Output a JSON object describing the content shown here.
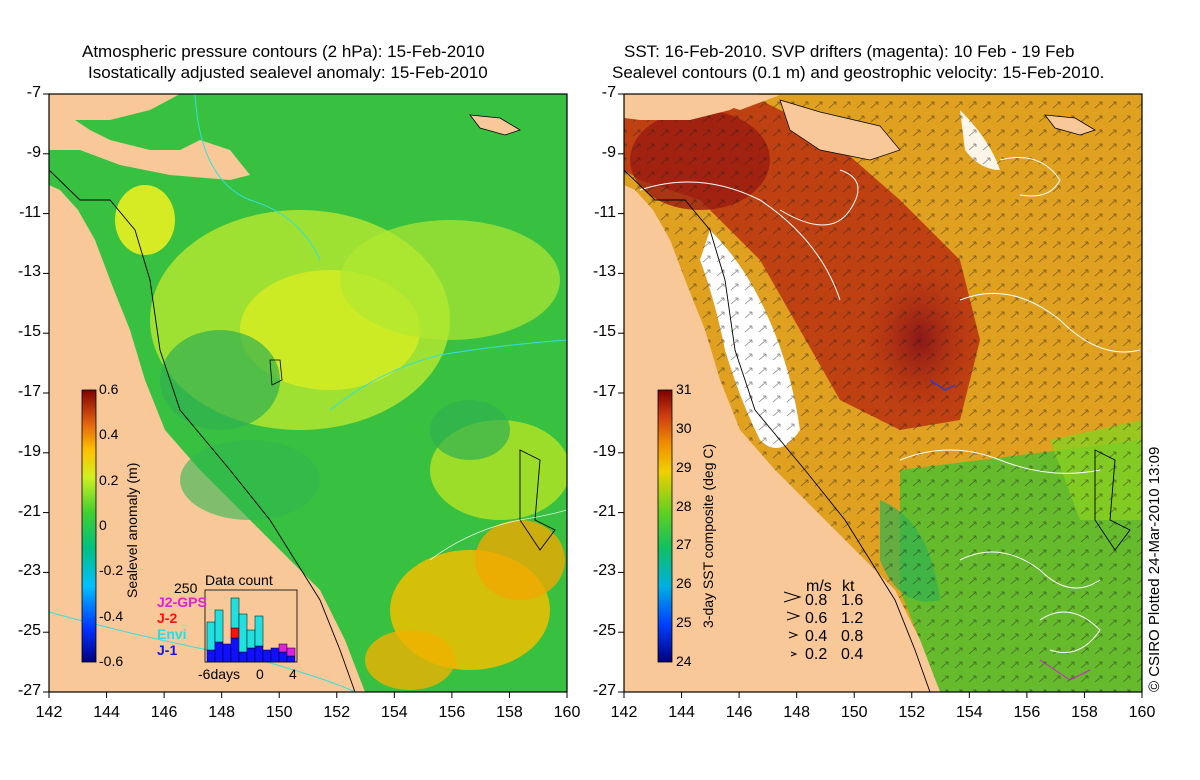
{
  "left_panel": {
    "title_line1": "Atmospheric pressure contours (2 hPa): 15-Feb-2010",
    "title_line2": "Isostatically adjusted sealevel anomaly: 15-Feb-2010",
    "colorbar": {
      "label": "Sealevel anomaly (m)",
      "ticks": [
        "0.6",
        "0.4",
        "0.2",
        "0",
        "-0.2",
        "-0.4",
        "-0.6"
      ],
      "range": [
        -0.6,
        0.6
      ]
    },
    "data_count": {
      "title": "Data count",
      "ymax_label": "250",
      "legend": [
        {
          "name": "J2-GPS",
          "color": "#e020e0"
        },
        {
          "name": "J-2",
          "color": "#ff1010"
        },
        {
          "name": "Envi",
          "color": "#20e0e0"
        },
        {
          "name": "J-1",
          "color": "#1010ff"
        }
      ],
      "xtick_left": "-6days",
      "xtick_mid": "0",
      "xtick_right": "4"
    }
  },
  "right_panel": {
    "title_line1": "SST: 16-Feb-2010. SVP drifters (magenta): 10 Feb - 19 Feb",
    "title_line2": "Sealevel contours (0.1 m) and geostrophic velocity: 15-Feb-2010.",
    "colorbar": {
      "label": "3-day SST composite (deg C)",
      "ticks": [
        "31",
        "30",
        "29",
        "28",
        "27",
        "26",
        "25",
        "24"
      ],
      "range": [
        24,
        31
      ]
    },
    "velocity_legend": {
      "header_ms": "m/s",
      "header_kt": "kt",
      "rows": [
        {
          "ms": "0.8",
          "kt": "1.6"
        },
        {
          "ms": "0.6",
          "kt": "1.2"
        },
        {
          "ms": "0.4",
          "kt": "0.8"
        },
        {
          "ms": "0.2",
          "kt": "0.4"
        }
      ]
    },
    "credit": "© CSIRO Plotted 24-Mar-2010 13:09"
  },
  "axes": {
    "lat_ticks": [
      "-7",
      "-9",
      "-11",
      "-13",
      "-15",
      "-17",
      "-19",
      "-21",
      "-23",
      "-25",
      "-27"
    ],
    "lon_ticks": [
      "142",
      "144",
      "146",
      "148",
      "150",
      "152",
      "154",
      "156",
      "158",
      "160"
    ],
    "lat_range": [
      -27,
      -7
    ],
    "lon_range": [
      142,
      160
    ]
  },
  "colors": {
    "land": "#f8c898",
    "ocean_left": "#38c040",
    "ocean_right": "#e0a020"
  }
}
